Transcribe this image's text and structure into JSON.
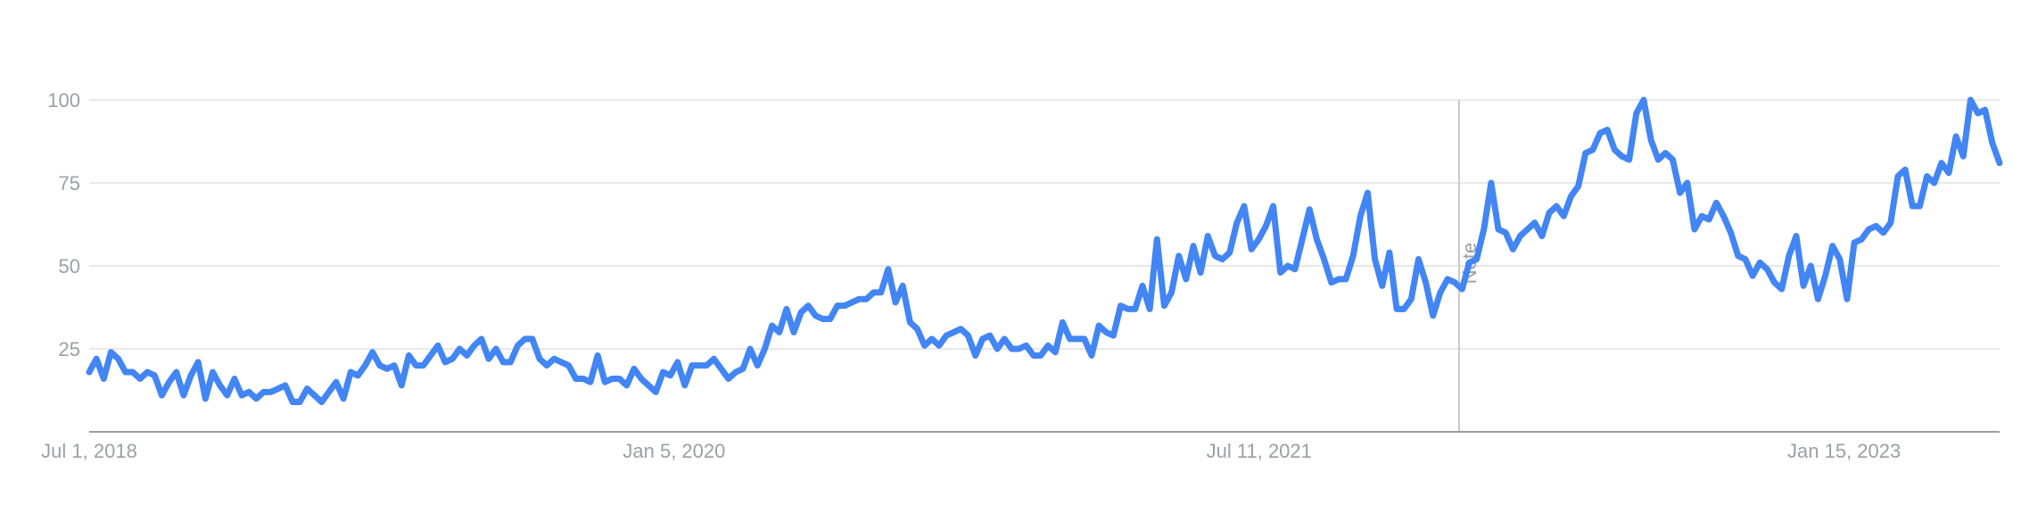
{
  "chart_data": {
    "type": "line",
    "x_start": "Jul 1, 2018",
    "x_end": "Jun 11, 2023",
    "x_ticks": [
      "Jul 1, 2018",
      "Jan 5, 2020",
      "Jul 11, 2021",
      "Jan 15, 2023"
    ],
    "y_ticks": [
      "25",
      "50",
      "75",
      "100"
    ],
    "ylim": [
      0,
      100
    ],
    "grid": true,
    "legend": "none",
    "annotations": [
      {
        "text": "Note",
        "x": "Jan 16, 2022"
      }
    ],
    "series": [
      {
        "color": "#4285f4",
        "values": [
          18,
          22,
          16,
          24,
          22,
          18,
          18,
          16,
          18,
          17,
          11,
          15,
          18,
          11,
          17,
          21,
          10,
          18,
          14,
          11,
          16,
          11,
          12,
          10,
          12,
          12,
          13,
          14,
          9,
          9,
          13,
          11,
          9,
          12,
          15,
          10,
          18,
          17,
          20,
          24,
          20,
          19,
          20,
          14,
          23,
          20,
          20,
          23,
          26,
          21,
          22,
          25,
          23,
          26,
          28,
          22,
          25,
          21,
          21,
          26,
          28,
          28,
          22,
          20,
          22,
          21,
          20,
          16,
          16,
          15,
          23,
          15,
          16,
          16,
          14,
          19,
          16,
          14,
          12,
          18,
          17,
          21,
          14,
          20,
          20,
          20,
          22,
          19,
          16,
          18,
          19,
          25,
          20,
          25,
          32,
          30,
          37,
          30,
          36,
          38,
          35,
          34,
          34,
          38,
          38,
          39,
          40,
          40,
          42,
          42,
          49,
          39,
          44,
          33,
          31,
          26,
          28,
          26,
          29,
          30,
          31,
          29,
          23,
          28,
          29,
          25,
          28,
          25,
          25,
          26,
          23,
          23,
          26,
          24,
          33,
          28,
          28,
          28,
          23,
          32,
          30,
          29,
          38,
          37,
          37,
          44,
          37,
          58,
          38,
          42,
          53,
          46,
          56,
          48,
          59,
          53,
          52,
          54,
          63,
          68,
          55,
          58,
          62,
          68,
          48,
          50,
          49,
          58,
          67,
          58,
          52,
          45,
          46,
          46,
          53,
          65,
          72,
          52,
          44,
          54,
          37,
          37,
          40,
          52,
          45,
          35,
          42,
          46,
          45,
          43,
          51,
          52,
          61,
          75,
          61,
          60,
          55,
          59,
          61,
          63,
          59,
          66,
          68,
          65,
          71,
          74,
          84,
          85,
          90,
          91,
          85,
          83,
          82,
          96,
          100,
          88,
          82,
          84,
          82,
          72,
          75,
          61,
          65,
          64,
          69,
          65,
          60,
          53,
          52,
          47,
          51,
          49,
          45,
          43,
          53,
          59,
          44,
          50,
          40,
          47,
          56,
          52,
          40,
          57,
          58,
          61,
          62,
          60,
          63,
          77,
          79,
          68,
          68,
          77,
          75,
          81,
          78,
          89,
          83,
          100,
          96,
          97,
          87,
          81
        ]
      }
    ]
  }
}
